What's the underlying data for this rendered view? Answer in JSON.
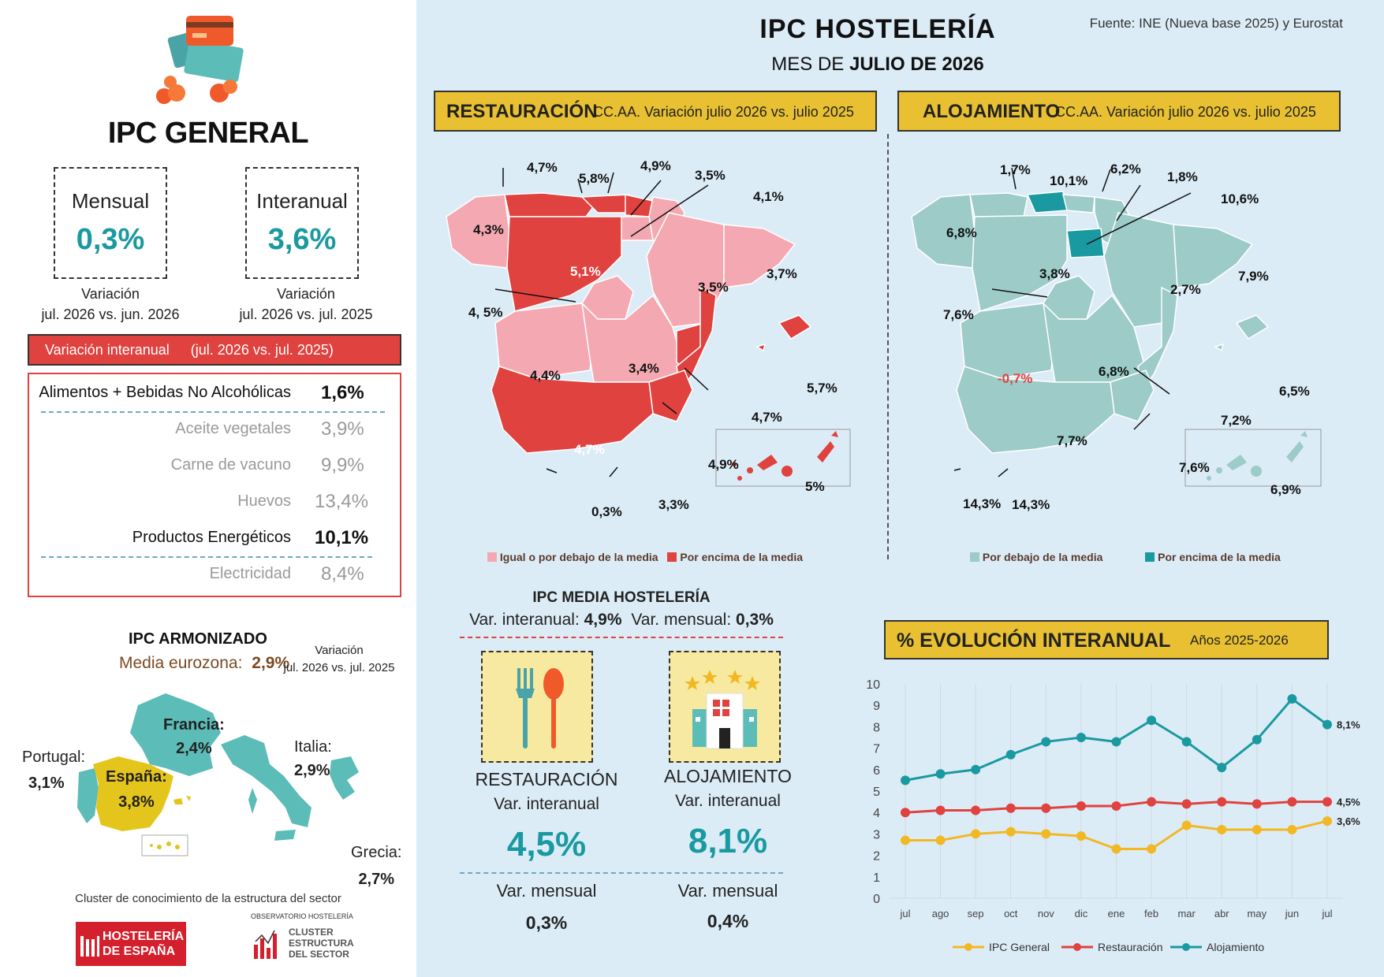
{
  "left": {
    "title": "IPC GENERAL",
    "mensual": {
      "label": "Mensual",
      "value": "0,3%",
      "note1": "Variación",
      "note2": "jul. 2026 vs. jun. 2026"
    },
    "interanual": {
      "label": "Interanual",
      "value": "3,6%",
      "note1": "Variación",
      "note2": "jul. 2026 vs. jul. 2025"
    },
    "var_banner": {
      "label": "Variación interanual",
      "period": "(jul. 2026 vs. jul. 2025)"
    },
    "items": [
      {
        "name": "Alimentos + Bebidas No Alcohólicas",
        "value": "1,6%"
      },
      {
        "name": "Aceite vegetales",
        "value": "3,9%"
      },
      {
        "name": "Carne de vacuno",
        "value": "9,9%"
      },
      {
        "name": "Huevos",
        "value": "13,4%"
      },
      {
        "name": "Productos Energéticos",
        "value": "10,1%"
      },
      {
        "name": "Electricidad",
        "value": "8,4%"
      }
    ],
    "armonizado": {
      "title": "IPC ARMONIZADO",
      "media_label": "Media eurozona:",
      "media_value": "2,9%",
      "var_note1": "Variación",
      "var_note2": "jul. 2026 vs. jul. 2025",
      "countries": [
        {
          "name": "Francia:",
          "value": "2,4%"
        },
        {
          "name": "Italia:",
          "value": "2,9%"
        },
        {
          "name": "Portugal:",
          "value": "3,1%"
        },
        {
          "name": "España:",
          "value": "3,8%"
        },
        {
          "name": "Grecia:",
          "value": "2,7%"
        }
      ]
    },
    "footer": {
      "cluster_text": "Cluster de conocimiento de la estructura del sector",
      "logo1_line1": "HOSTELERÍA",
      "logo1_line2": "DE ESPAÑA",
      "logo2_top": "OBSERVATORIO HOSTELERÍA",
      "logo2_l1": "CLUSTER",
      "logo2_l2": "ESTRUCTURA",
      "logo2_l3": "DEL SECTOR"
    }
  },
  "header": {
    "title": "IPC HOSTELERÍA",
    "subtitle_pre": "MES DE ",
    "subtitle_bold": "JULIO DE 2026",
    "source": "Fuente: INE (Nueva base 2025) y Eurostat"
  },
  "restauracion_map": {
    "title": "RESTAURACIÓN",
    "subtitle": "CC.AA. Variación julio 2026 vs. julio 2025",
    "labels": [
      "4,7%",
      "5,8%",
      "4,9%",
      "3,5%",
      "4,1%",
      "4,3%",
      "5,1%",
      "3,5%",
      "3,7%",
      "4, 5%",
      "4,4%",
      "3,4%",
      "5,7%",
      "4,7%",
      "4,7%",
      "4,9%",
      "0,3%",
      "3,3%",
      "5%"
    ],
    "legend_low": "Igual o por debajo de la media",
    "legend_high": "Por encima de la media",
    "color_low": "#f4a9b2",
    "color_high": "#e0423f"
  },
  "alojamiento_map": {
    "title": "ALOJAMIENTO",
    "subtitle": "CC.AA. Variación julio 2026 vs. julio 2025",
    "labels": [
      "1,7%",
      "10,1%",
      "6,2%",
      "1,8%",
      "10,6%",
      "6,8%",
      "3,8%",
      "2,7%",
      "7,9%",
      "7,6%",
      "-0,7%",
      "6,8%",
      "6,5%",
      "7,2%",
      "7,7%",
      "7,6%",
      "14,3%",
      "14,3%",
      "6,9%"
    ],
    "legend_low": "Por debajo de la media",
    "legend_high": "Por encima de la media",
    "color_low": "#9ccbc8",
    "color_high": "#1a9aa0"
  },
  "media_hosteleria": {
    "title": "IPC MEDIA HOSTELERÍA",
    "interanual_label": "Var. interanual:",
    "interanual_value": "4,9%",
    "mensual_label": "Var. mensual:",
    "mensual_value": "0,3%",
    "restauracion": {
      "title": "RESTAURACIÓN",
      "inter_label": "Var. interanual",
      "inter_value": "4,5%",
      "mens_label": "Var. mensual",
      "mens_value": "0,3%"
    },
    "alojamiento": {
      "title": "ALOJAMIENTO",
      "inter_label": "Var. interanual",
      "inter_value": "8,1%",
      "mens_label": "Var. mensual",
      "mens_value": "0,4%"
    }
  },
  "evolucion": {
    "title": "% EVOLUCIÓN INTERANUAL",
    "years": "Años 2025-2026"
  },
  "chart_data": {
    "type": "line",
    "title": "% EVOLUCIÓN INTERANUAL",
    "x": [
      "jul",
      "ago",
      "sep",
      "oct",
      "nov",
      "dic",
      "ene",
      "feb",
      "mar",
      "abr",
      "may",
      "jun",
      "jul"
    ],
    "ylim": [
      0,
      10
    ],
    "yticks": [
      0,
      1,
      2,
      3,
      4,
      5,
      6,
      7,
      8,
      9,
      10
    ],
    "grid": true,
    "legend": "bottom",
    "series": [
      {
        "name": "IPC General",
        "color": "#f2b824",
        "values": [
          2.7,
          2.7,
          3.0,
          3.1,
          3.0,
          2.9,
          2.3,
          2.3,
          3.4,
          3.2,
          3.2,
          3.2,
          3.6
        ],
        "end_label": "3,6%"
      },
      {
        "name": "Restauración",
        "color": "#e0423f",
        "values": [
          4.0,
          4.1,
          4.1,
          4.2,
          4.2,
          4.3,
          4.3,
          4.5,
          4.4,
          4.5,
          4.4,
          4.5,
          4.5
        ],
        "end_label": "4,5%"
      },
      {
        "name": "Alojamiento",
        "color": "#1a9aa0",
        "values": [
          5.5,
          5.8,
          6.0,
          6.7,
          7.3,
          7.5,
          7.3,
          8.3,
          7.3,
          6.1,
          7.4,
          9.3,
          8.1
        ],
        "end_label": "8,1%"
      }
    ]
  }
}
